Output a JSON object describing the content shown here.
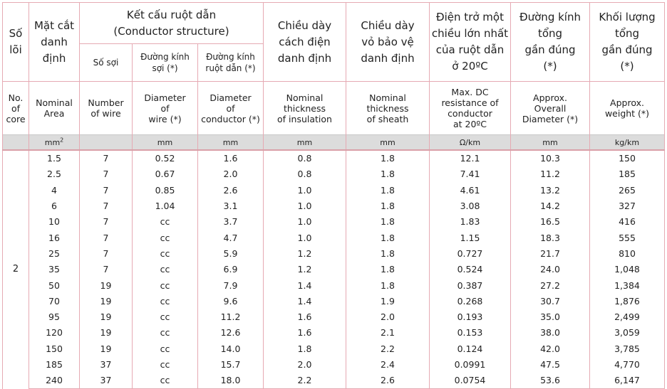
{
  "headers_vn": {
    "cores": [
      "Số",
      "lõi"
    ],
    "area": [
      "Mặt cắt",
      "danh",
      "định"
    ],
    "structure": [
      "Kết cấu ruột dẫn",
      "(Conductor structure)"
    ],
    "num_wire": "Số sợi",
    "wire_dia": [
      "Đường kính",
      "sợi (*)"
    ],
    "cond_dia": [
      "Đường kính",
      "ruột dẫn (*)"
    ],
    "ins": [
      "Chiều dày",
      "cách điện",
      "danh định"
    ],
    "sheath": [
      "Chiều dày",
      "vỏ bảo vệ",
      "danh định"
    ],
    "resist": [
      "Điện trở một",
      "chiều lớn nhất",
      "của ruột dẫn",
      "ở 20ºC"
    ],
    "overall": [
      "Đường kính",
      "tổng",
      "gần đúng",
      "(*)"
    ],
    "weight": [
      "Khối lượng",
      "tổng",
      "gần đúng",
      "(*)"
    ]
  },
  "headers_en": {
    "cores": [
      "No.",
      "of",
      "core"
    ],
    "area": [
      "Nominal",
      "Area"
    ],
    "num_wire": [
      "Number",
      "of wire"
    ],
    "wire_dia": [
      "Diameter",
      "of",
      "wire (*)"
    ],
    "cond_dia": [
      "Diameter",
      "of",
      "conductor (*)"
    ],
    "ins": [
      "Nominal",
      "thickness",
      "of insulation"
    ],
    "sheath": [
      "Nominal",
      "thickness",
      "of sheath"
    ],
    "resist": [
      "Max. DC",
      "resistance of",
      "conductor",
      "at 20ºC"
    ],
    "overall": [
      "Approx.",
      "Overall",
      "Diameter (*)"
    ],
    "weight": [
      "Approx.",
      "weight (*)"
    ]
  },
  "units": {
    "cores": "",
    "area": "mm",
    "area_sup": "2",
    "num_wire": "",
    "wire_dia": "mm",
    "cond_dia": "mm",
    "ins": "mm",
    "sheath": "mm",
    "resist": "Ω/km",
    "overall": "mm",
    "weight": "kg/km"
  },
  "core_value": "2",
  "rows": [
    [
      "1.5",
      "7",
      "0.52",
      "1.6",
      "0.8",
      "1.8",
      "12.1",
      "10.3",
      "150"
    ],
    [
      "2.5",
      "7",
      "0.67",
      "2.0",
      "0.8",
      "1.8",
      "7.41",
      "11.2",
      "185"
    ],
    [
      "4",
      "7",
      "0.85",
      "2.6",
      "1.0",
      "1.8",
      "4.61",
      "13.2",
      "265"
    ],
    [
      "6",
      "7",
      "1.04",
      "3.1",
      "1.0",
      "1.8",
      "3.08",
      "14.2",
      "327"
    ],
    [
      "10",
      "7",
      "cc",
      "3.7",
      "1.0",
      "1.8",
      "1.83",
      "16.5",
      "416"
    ],
    [
      "16",
      "7",
      "cc",
      "4.7",
      "1.0",
      "1.8",
      "1.15",
      "18.3",
      "555"
    ],
    [
      "25",
      "7",
      "cc",
      "5.9",
      "1.2",
      "1.8",
      "0.727",
      "21.7",
      "810"
    ],
    [
      "35",
      "7",
      "cc",
      "6.9",
      "1.2",
      "1.8",
      "0.524",
      "24.0",
      "1,048"
    ],
    [
      "50",
      "19",
      "cc",
      "7.9",
      "1.4",
      "1.8",
      "0.387",
      "27.2",
      "1,384"
    ],
    [
      "70",
      "19",
      "cc",
      "9.6",
      "1.4",
      "1.9",
      "0.268",
      "30.7",
      "1,876"
    ],
    [
      "95",
      "19",
      "cc",
      "11.2",
      "1.6",
      "2.0",
      "0.193",
      "35.0",
      "2,499"
    ],
    [
      "120",
      "19",
      "cc",
      "12.6",
      "1.6",
      "2.1",
      "0.153",
      "38.0",
      "3,059"
    ],
    [
      "150",
      "19",
      "cc",
      "14.0",
      "1.8",
      "2.2",
      "0.124",
      "42.0",
      "3,785"
    ],
    [
      "185",
      "37",
      "cc",
      "15.7",
      "2.0",
      "2.4",
      "0.0991",
      "47.5",
      "4,770"
    ],
    [
      "240",
      "37",
      "cc",
      "18.0",
      "2.2",
      "2.6",
      "0.0754",
      "53.6",
      "6,147"
    ]
  ]
}
